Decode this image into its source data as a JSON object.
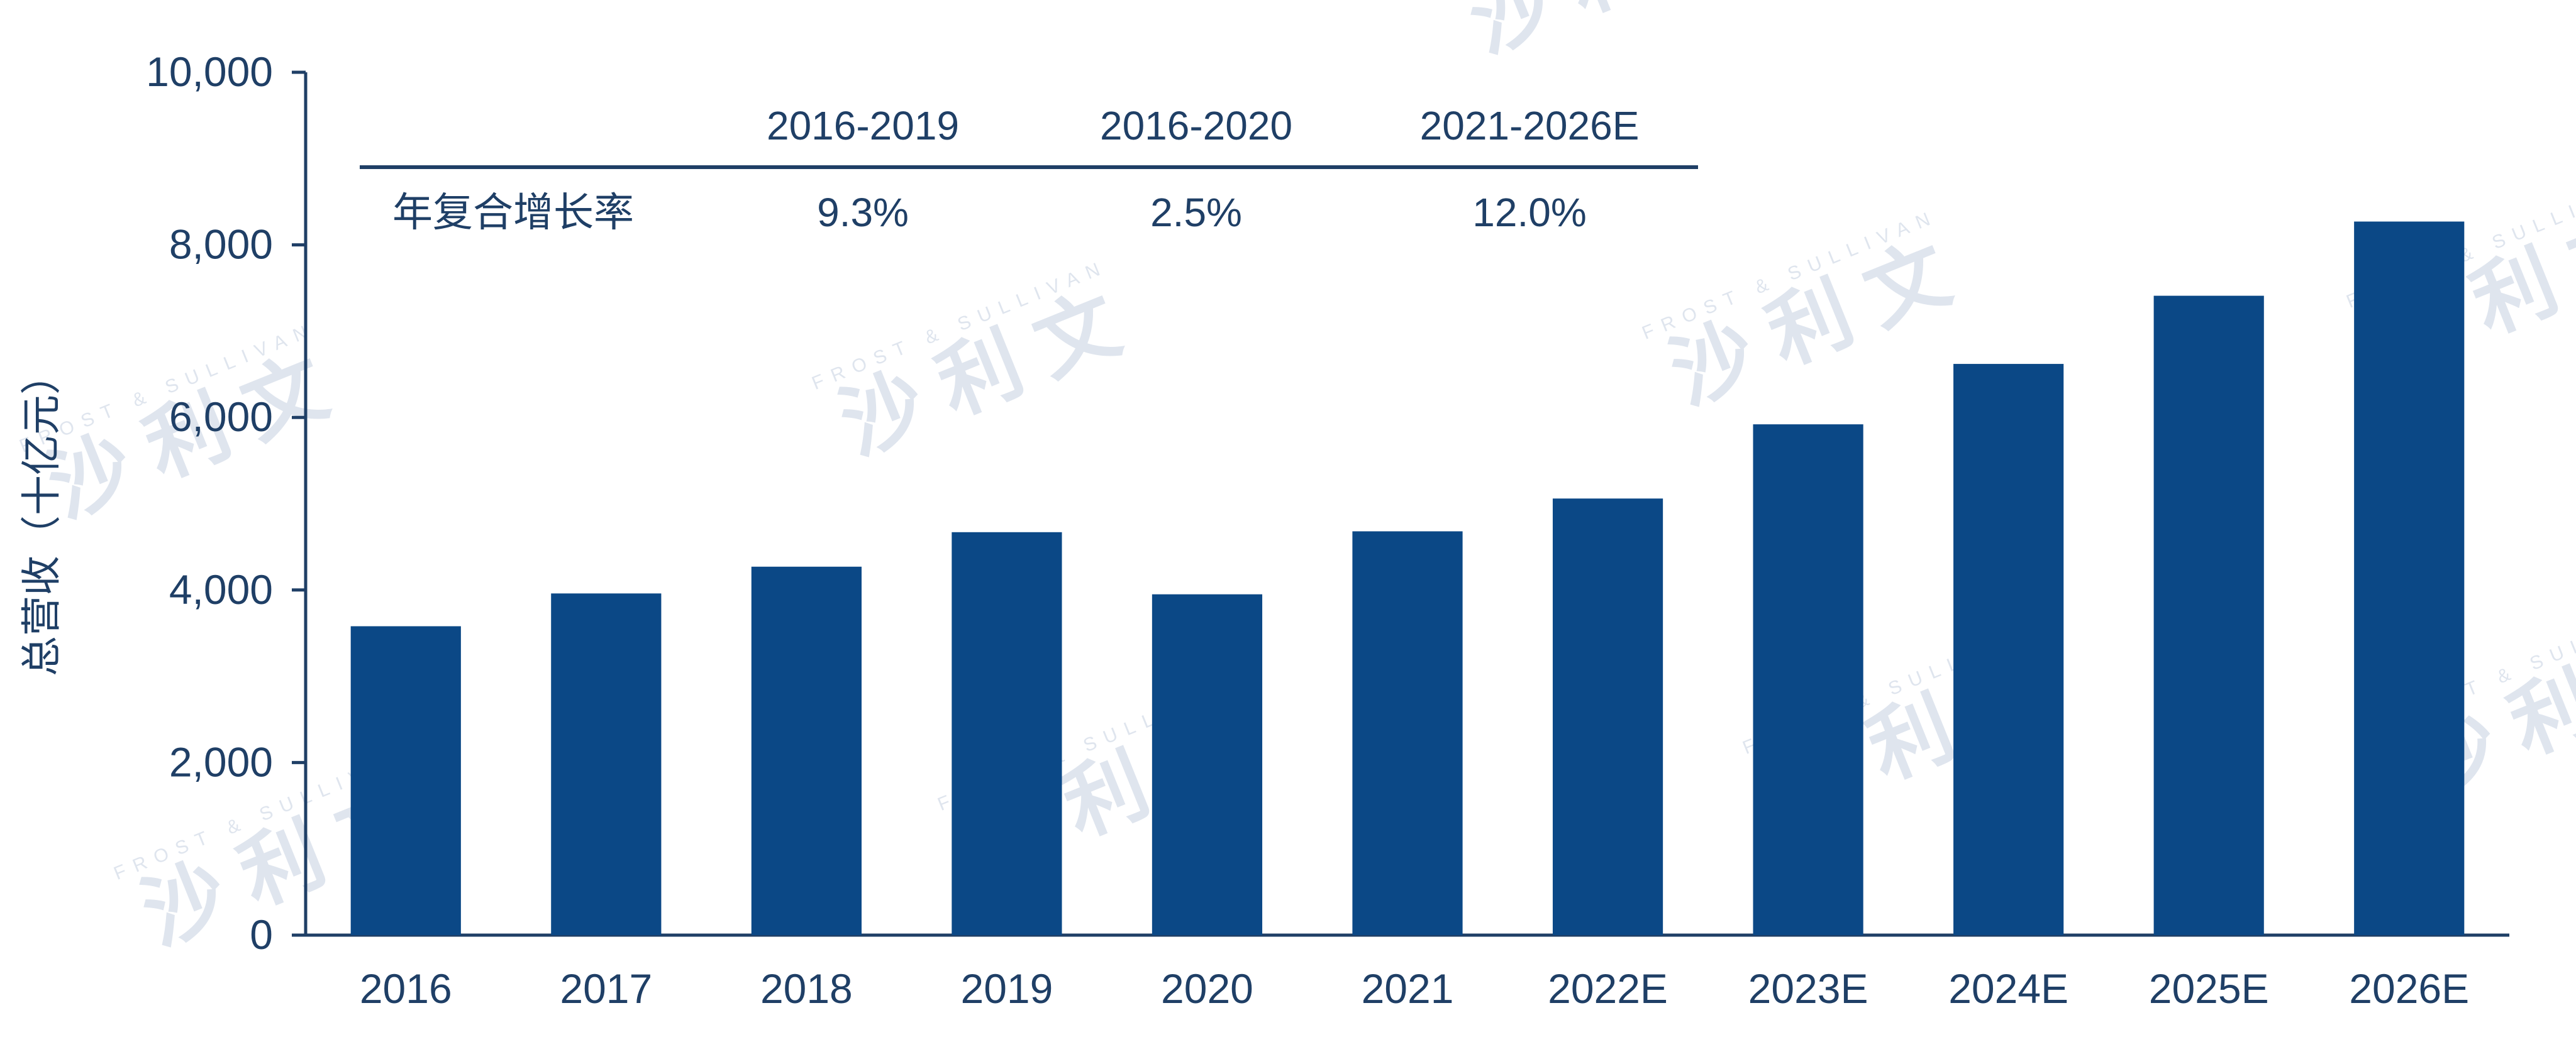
{
  "chart_data": {
    "type": "bar",
    "categories": [
      "2016",
      "2017",
      "2018",
      "2019",
      "2020",
      "2021",
      "2022E",
      "2023E",
      "2024E",
      "2025E",
      "2026E"
    ],
    "values": [
      3580,
      3960,
      4270,
      4670,
      3950,
      4680,
      5060,
      5920,
      6620,
      7410,
      8270
    ],
    "ylabel": "总营收（十亿元）",
    "ylim": [
      0,
      10000
    ],
    "yticks": [
      "0",
      "2,000",
      "4,000",
      "6,000",
      "8,000",
      "10,000"
    ],
    "legend": "none",
    "grid": false,
    "colors": {
      "bar": "#0b4886",
      "text": "#1f3f66",
      "axis": "#1f3f66",
      "watermark": "#dfe5ee"
    }
  },
  "cagr_table": {
    "headers": [
      "2016-2019",
      "2016-2020",
      "2021-2026E"
    ],
    "row_label": "年复合增长率",
    "values": [
      "9.3%",
      "2.5%",
      "12.0%"
    ]
  },
  "watermark": {
    "cn": "沙 利 文",
    "en": "FROST & SULLIVAN"
  }
}
